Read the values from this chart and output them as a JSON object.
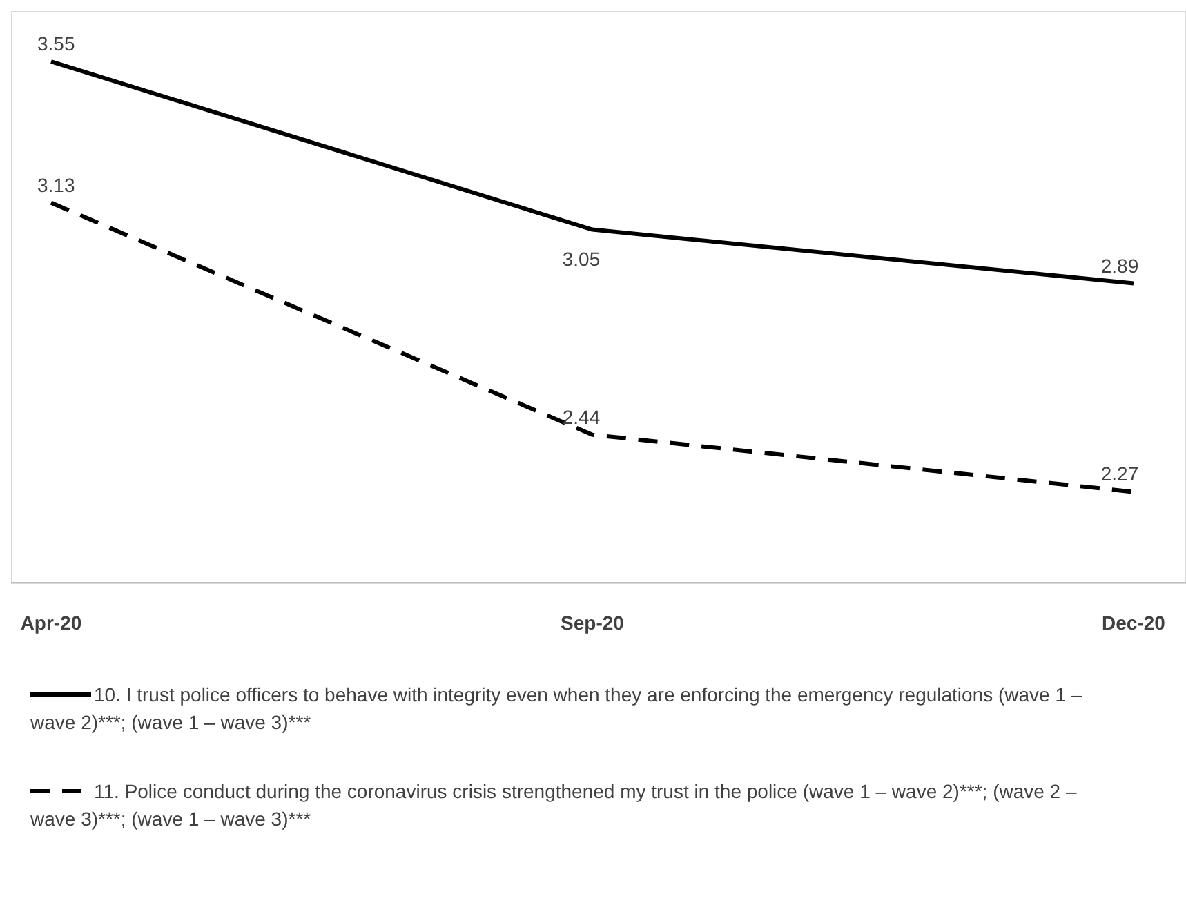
{
  "chart_data": {
    "type": "line",
    "categories": [
      "Apr-20",
      "Sep-20",
      "Dec-20"
    ],
    "ylim": [
      2,
      3.7
    ],
    "data_labels": true,
    "legend": "bottom",
    "series": [
      {
        "name": "10. I trust police officers to behave with integrity even when they are enforcing the emergency regulations (wave 1 – wave 2)***; (wave 1 – wave 3)***",
        "color": "#000000",
        "line_style": "solid",
        "values": [
          3.55,
          3.05,
          2.89
        ]
      },
      {
        "name": "11. Police conduct during the coronavirus crisis strengthened my trust in the police (wave 1 – wave 2)***; (wave 2 – wave 3)***; (wave 1 – wave 3)***",
        "color": "#000000",
        "line_style": "dashed",
        "values": [
          3.13,
          2.44,
          2.27
        ]
      }
    ]
  }
}
